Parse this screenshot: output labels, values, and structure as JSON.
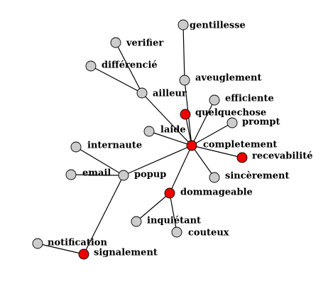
{
  "colors": {
    "highlight": "#ee0000",
    "normal": "#cccccc",
    "edge": "#000000",
    "text": "#000000"
  },
  "nodes": [
    {
      "id": "gentillesse",
      "label": "gentillesse",
      "highlight": false
    },
    {
      "id": "verifier",
      "label": "verifier",
      "highlight": false
    },
    {
      "id": "differencie",
      "label": "différencié",
      "highlight": false
    },
    {
      "id": "ailleur",
      "label": "ailleur",
      "highlight": false
    },
    {
      "id": "aveuglement",
      "label": "aveuglement",
      "highlight": false
    },
    {
      "id": "efficiente",
      "label": "efficiente",
      "highlight": false
    },
    {
      "id": "quelquechose",
      "label": "quelquechose",
      "highlight": true
    },
    {
      "id": "prompt",
      "label": "prompt",
      "highlight": false
    },
    {
      "id": "laide",
      "label": "laide",
      "highlight": false
    },
    {
      "id": "completement",
      "label": "completement",
      "highlight": true
    },
    {
      "id": "recevabilite",
      "label": "recevabilité",
      "highlight": true
    },
    {
      "id": "internaute",
      "label": "internaute",
      "highlight": false
    },
    {
      "id": "email",
      "label": "email",
      "highlight": false
    },
    {
      "id": "popup",
      "label": "popup",
      "highlight": false
    },
    {
      "id": "sincerement",
      "label": "sincèrement",
      "highlight": false
    },
    {
      "id": "dommageable",
      "label": "dommageable",
      "highlight": true
    },
    {
      "id": "inquietant",
      "label": "inquiétant",
      "highlight": false
    },
    {
      "id": "couteux",
      "label": "couteux",
      "highlight": false
    },
    {
      "id": "notification",
      "label": "notification",
      "highlight": false
    },
    {
      "id": "signalement",
      "label": "signalement",
      "highlight": true
    }
  ],
  "edges": [
    [
      "gentillesse",
      "aveuglement"
    ],
    [
      "aveuglement",
      "completement"
    ],
    [
      "verifier",
      "ailleur"
    ],
    [
      "differencie",
      "ailleur"
    ],
    [
      "ailleur",
      "completement"
    ],
    [
      "efficiente",
      "completement"
    ],
    [
      "quelquechose",
      "completement"
    ],
    [
      "prompt",
      "completement"
    ],
    [
      "laide",
      "completement"
    ],
    [
      "completement",
      "recevabilite"
    ],
    [
      "completement",
      "sincerement"
    ],
    [
      "completement",
      "dommageable"
    ],
    [
      "completement",
      "popup"
    ],
    [
      "internaute",
      "popup"
    ],
    [
      "email",
      "popup"
    ],
    [
      "popup",
      "signalement"
    ],
    [
      "notification",
      "signalement"
    ],
    [
      "dommageable",
      "inquietant"
    ],
    [
      "dommageable",
      "couteux"
    ]
  ]
}
